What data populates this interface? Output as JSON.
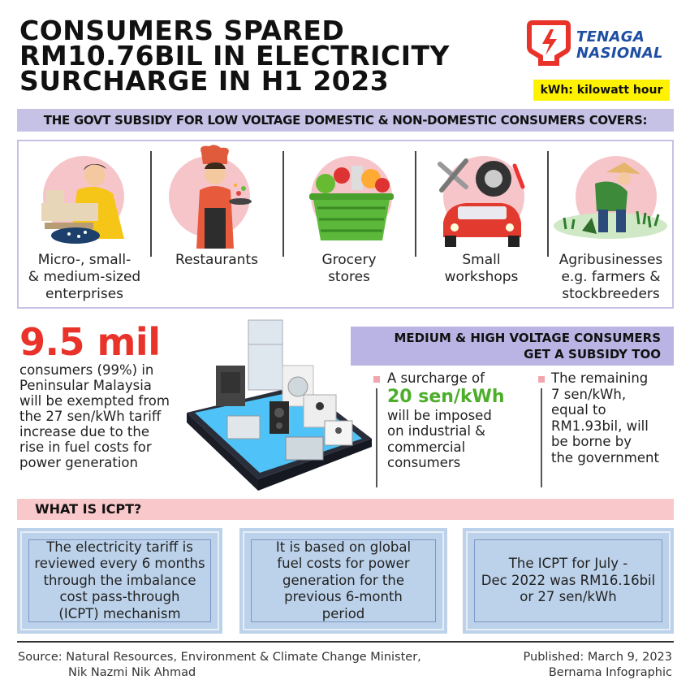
{
  "title": {
    "line1": "CONSUMERS SPARED",
    "line2": "RM10.76BIL IN ELECTRICITY",
    "line3": "SURCHARGE IN H1 2023"
  },
  "logo": {
    "line1": "TENAGA",
    "line2": "NASIONAL"
  },
  "kwh_note": "kWh: kilowatt hour",
  "subsidy_banner": "THE GOVT SUBSIDY FOR LOW VOLTAGE DOMESTIC & NON-DOMESTIC CONSUMERS COVERS:",
  "categories": [
    {
      "label": "Micro-, small-\n& medium-sized\nenterprises",
      "icon": "tailor-sewing-icon"
    },
    {
      "label": "Restaurants",
      "icon": "chef-icon"
    },
    {
      "label": "Grocery\nstores",
      "icon": "grocery-basket-icon"
    },
    {
      "label": "Small\nworkshops",
      "icon": "car-tools-icon"
    },
    {
      "label": "Agribusinesses\ne.g. farmers &\nstockbreeders",
      "icon": "farmer-icon"
    }
  ],
  "exemption": {
    "figure": "9.5 mil",
    "text": "consumers (99%) in\nPeninsular Malaysia\nwill be exempted from\nthe 27 sen/kWh tariff\nincrease due to the\nrise in fuel costs for\npower generation"
  },
  "hv_banner": {
    "line1": "MEDIUM & HIGH VOLTAGE CONSUMERS",
    "line2": "GET A SUBSIDY TOO"
  },
  "hv_points": {
    "p1_pre": "A surcharge of",
    "p1_highlight": "20 sen/kWh",
    "p1_post": "will be imposed\non industrial &\ncommercial\nconsumers",
    "p2": "The remaining\n7 sen/kWh,\nequal to\nRM1.93bil, will\nbe borne by\nthe government"
  },
  "icpt_heading": "WHAT IS ICPT?",
  "icpt_boxes": [
    "The electricity tariff is\nreviewed every 6 months\nthrough the imbalance\ncost pass-through\n(ICPT) mechanism",
    "It is based on global\nfuel costs for power\ngeneration for the\nprevious 6-month\nperiod",
    "The ICPT for July -\nDec 2022 was RM16.16bil\nor 27 sen/kWh"
  ],
  "footer": {
    "source_line1": "Source: Natural Resources, Environment & Climate Change Minister,",
    "source_line2": "Nik Nazmi Nik Ahmad",
    "published": "Published: March 9, 2023",
    "credit": "Bernama Infographic"
  },
  "colors": {
    "accent_red": "#e8322a",
    "banner_lavender": "#c5c2e6",
    "pink_bar": "#f8c8cb",
    "box_blue": "#bcd2ea",
    "highlight_green": "#4cae2a",
    "note_yellow": "#fff200",
    "logo_blue": "#1f4ea3"
  }
}
